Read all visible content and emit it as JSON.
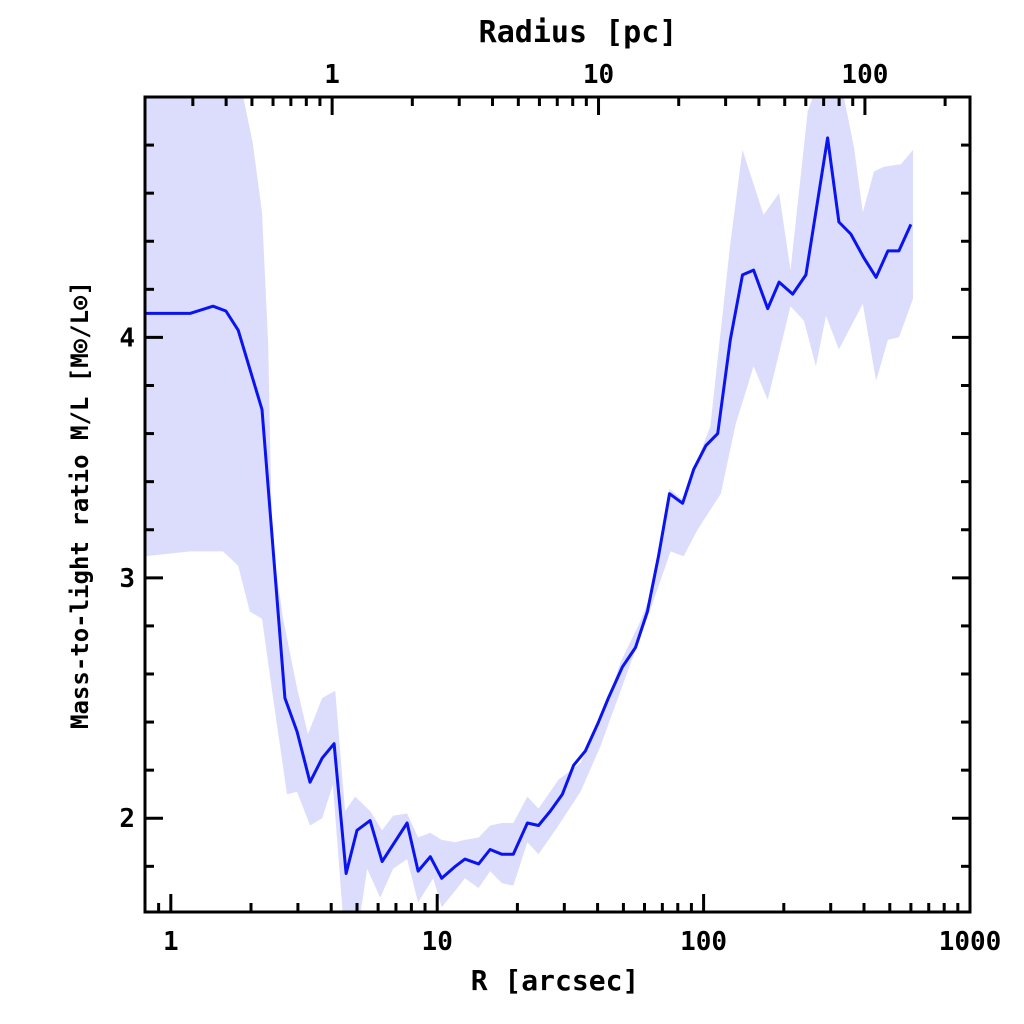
{
  "chart_data": {
    "type": "line",
    "title": "Radius [pc]",
    "xlabel": "R [arcsec]",
    "ylabel": "Mass-to-light ratio M/L [M⊙/L⊙]",
    "xscale": "log",
    "xlim": [
      0.8,
      1000
    ],
    "ylim": [
      1.61,
      5.0
    ],
    "grid": false,
    "x_tick_labels": [
      "1",
      "10",
      "100",
      "1000"
    ],
    "x_ticks": [
      1,
      10,
      100,
      1000
    ],
    "y_tick_labels": [
      "2",
      "3",
      "4"
    ],
    "y_ticks": [
      2,
      3,
      4
    ],
    "top_axis": {
      "label": "Radius [pc]",
      "pc_per_arcsec": 0.248,
      "tick_labels": [
        "1",
        "10",
        "100"
      ],
      "ticks_pc": [
        1,
        10,
        100
      ]
    },
    "colors": {
      "line": "#0a14f0",
      "band": "#dcdcfc",
      "axes": "#000000"
    },
    "series": [
      {
        "name": "M/L",
        "x": [
          0.8,
          1.18,
          1.44,
          1.61,
          1.79,
          2.2,
          2.68,
          2.98,
          3.33,
          3.7,
          4.1,
          4.55,
          5.0,
          5.6,
          6.21,
          7.71,
          8.48,
          9.42,
          10.4,
          11.7,
          12.7,
          14.3,
          15.8,
          17.5,
          19.3,
          21.8,
          24.0,
          26.6,
          29.5,
          32.5,
          36.0,
          40.3,
          43.9,
          49.6,
          55.5,
          61.5,
          67.7,
          74.5,
          83.4,
          91.7,
          102,
          113,
          126,
          140,
          154,
          174,
          192,
          216,
          242,
          292,
          322,
          357,
          400,
          444,
          492,
          541,
          600
        ],
        "y": [
          4.1,
          4.1,
          4.13,
          4.11,
          4.03,
          3.7,
          2.5,
          2.36,
          2.15,
          2.25,
          2.31,
          1.77,
          1.95,
          1.99,
          1.82,
          1.98,
          1.78,
          1.84,
          1.75,
          1.8,
          1.83,
          1.81,
          1.87,
          1.85,
          1.85,
          1.98,
          1.97,
          2.03,
          2.1,
          2.22,
          2.28,
          2.4,
          2.5,
          2.63,
          2.71,
          2.86,
          3.09,
          3.35,
          3.31,
          3.45,
          3.55,
          3.6,
          3.99,
          4.26,
          4.28,
          4.12,
          4.23,
          4.18,
          4.26,
          4.83,
          4.48,
          4.43,
          4.33,
          4.25,
          4.36,
          4.36,
          4.47
        ]
      }
    ],
    "band_upper": {
      "x": [
        0.8,
        1.87,
        2.03,
        2.2,
        2.32,
        2.4,
        2.64,
        2.98,
        3.27,
        3.7,
        4.14,
        4.51,
        4.92,
        5.6,
        6.21,
        6.83,
        7.71,
        8.48,
        9.42,
        10.4,
        11.7,
        12.7,
        14.3,
        15.8,
        17.5,
        19.3,
        21.8,
        24.0,
        28.5,
        34.5,
        41.0,
        48.8,
        57.9,
        63.2,
        74.5,
        84.1,
        94.9,
        106,
        126,
        140,
        168,
        192,
        212,
        246,
        257,
        336,
        367,
        396,
        436,
        475,
        551,
        611
      ],
      "y": [
        5.0,
        5.0,
        4.81,
        4.52,
        3.97,
        3.15,
        2.83,
        2.54,
        2.35,
        2.5,
        2.53,
        2.03,
        2.09,
        2.03,
        1.95,
        2.01,
        2.02,
        1.92,
        1.94,
        1.91,
        1.9,
        1.91,
        1.92,
        1.97,
        1.98,
        1.98,
        2.09,
        2.04,
        2.16,
        2.23,
        2.4,
        2.65,
        2.82,
        2.93,
        3.37,
        3.32,
        3.49,
        3.63,
        4.39,
        4.78,
        4.51,
        4.6,
        4.28,
        4.94,
        5.0,
        5.0,
        4.79,
        4.52,
        4.69,
        4.71,
        4.72,
        4.78
      ]
    },
    "band_lower": {
      "x": [
        0.8,
        1.18,
        1.57,
        1.79,
        1.98,
        2.2,
        2.42,
        2.73,
        2.98,
        3.33,
        3.7,
        4.06,
        4.43,
        5.13,
        5.46,
        6.11,
        6.83,
        7.71,
        8.48,
        9.66,
        10.4,
        11.7,
        12.7,
        14.3,
        15.8,
        17.5,
        19.3,
        21.8,
        24.0,
        28.5,
        34.5,
        41.0,
        48.8,
        63.2,
        75.2,
        84.1,
        94.9,
        116,
        132,
        154,
        174,
        212,
        238,
        264,
        288,
        322,
        396,
        444,
        492,
        541,
        611
      ],
      "y": [
        3.09,
        3.11,
        3.11,
        3.05,
        2.86,
        2.83,
        2.5,
        2.1,
        2.11,
        1.97,
        2.0,
        2.14,
        1.59,
        1.59,
        1.79,
        1.67,
        1.79,
        1.83,
        1.65,
        1.75,
        1.63,
        1.7,
        1.75,
        1.71,
        1.78,
        1.73,
        1.72,
        1.9,
        1.85,
        1.97,
        2.11,
        2.3,
        2.53,
        2.87,
        3.11,
        3.09,
        3.2,
        3.35,
        3.64,
        3.88,
        3.74,
        4.13,
        4.07,
        3.88,
        4.09,
        3.95,
        4.14,
        3.82,
        3.99,
        4.0,
        4.16
      ]
    }
  }
}
